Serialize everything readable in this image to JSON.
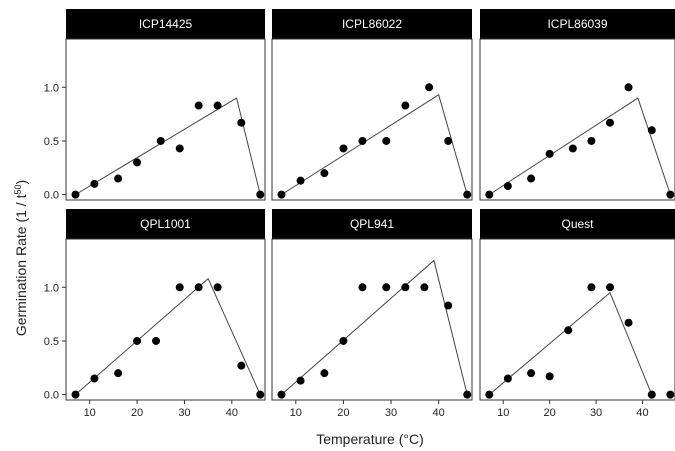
{
  "chart_data": {
    "type": "scatter",
    "xlabel": "Temperature (°C)",
    "ylabel": "Germination Rate (1 / t",
    "ylabel_sup": "50",
    "ylabel_end": ")",
    "xlim": [
      5,
      47
    ],
    "ylim": [
      -0.05,
      1.45
    ],
    "x_ticks": [
      10,
      20,
      30,
      40
    ],
    "y_ticks": [
      0.0,
      0.5,
      1.0
    ],
    "y_tick_labels": [
      "0.0",
      "0.5",
      "1.0"
    ],
    "panels": [
      {
        "name": "ICP14425",
        "points": [
          [
            7,
            0.0
          ],
          [
            11,
            0.1
          ],
          [
            16,
            0.15
          ],
          [
            20,
            0.3
          ],
          [
            25,
            0.5
          ],
          [
            29,
            0.43
          ],
          [
            33,
            0.83
          ],
          [
            37,
            0.83
          ],
          [
            42,
            0.67
          ],
          [
            46,
            0.0
          ]
        ],
        "fit": [
          [
            7,
            0.0
          ],
          [
            41,
            0.9
          ],
          [
            46,
            0.0
          ]
        ]
      },
      {
        "name": "ICPL86022",
        "points": [
          [
            7,
            0.0
          ],
          [
            11,
            0.13
          ],
          [
            16,
            0.2
          ],
          [
            20,
            0.43
          ],
          [
            24,
            0.5
          ],
          [
            29,
            0.5
          ],
          [
            33,
            0.83
          ],
          [
            38,
            1.0
          ],
          [
            42,
            0.5
          ],
          [
            46,
            0.0
          ]
        ],
        "fit": [
          [
            7,
            0.0
          ],
          [
            40,
            0.93
          ],
          [
            46,
            0.0
          ]
        ]
      },
      {
        "name": "ICPL86039",
        "points": [
          [
            7,
            0.0
          ],
          [
            11,
            0.08
          ],
          [
            16,
            0.15
          ],
          [
            20,
            0.38
          ],
          [
            25,
            0.43
          ],
          [
            29,
            0.5
          ],
          [
            33,
            0.67
          ],
          [
            37,
            1.0
          ],
          [
            42,
            0.6
          ],
          [
            46,
            0.0
          ]
        ],
        "fit": [
          [
            7,
            0.0
          ],
          [
            39,
            0.9
          ],
          [
            46,
            0.0
          ]
        ]
      },
      {
        "name": "QPL1001",
        "points": [
          [
            7,
            0.0
          ],
          [
            11,
            0.15
          ],
          [
            16,
            0.2
          ],
          [
            20,
            0.5
          ],
          [
            24,
            0.5
          ],
          [
            29,
            1.0
          ],
          [
            33,
            1.0
          ],
          [
            37,
            1.0
          ],
          [
            42,
            0.27
          ],
          [
            46,
            0.0
          ]
        ],
        "fit": [
          [
            7,
            0.0
          ],
          [
            35,
            1.08
          ],
          [
            46,
            0.0
          ]
        ]
      },
      {
        "name": "QPL941",
        "points": [
          [
            7,
            0.0
          ],
          [
            11,
            0.13
          ],
          [
            16,
            0.2
          ],
          [
            20,
            0.5
          ],
          [
            24,
            1.0
          ],
          [
            29,
            1.0
          ],
          [
            33,
            1.0
          ],
          [
            37,
            1.0
          ],
          [
            42,
            0.83
          ],
          [
            46,
            0.0
          ]
        ],
        "fit": [
          [
            7,
            0.0
          ],
          [
            39,
            1.25
          ],
          [
            46,
            0.0
          ]
        ]
      },
      {
        "name": "Quest",
        "points": [
          [
            7,
            0.0
          ],
          [
            11,
            0.15
          ],
          [
            16,
            0.2
          ],
          [
            20,
            0.17
          ],
          [
            24,
            0.6
          ],
          [
            29,
            1.0
          ],
          [
            33,
            1.0
          ],
          [
            37,
            0.67
          ],
          [
            42,
            0.0
          ],
          [
            46,
            0.0
          ]
        ],
        "fit": [
          [
            7,
            0.0
          ],
          [
            33,
            0.95
          ],
          [
            42,
            0.0
          ]
        ]
      }
    ]
  }
}
